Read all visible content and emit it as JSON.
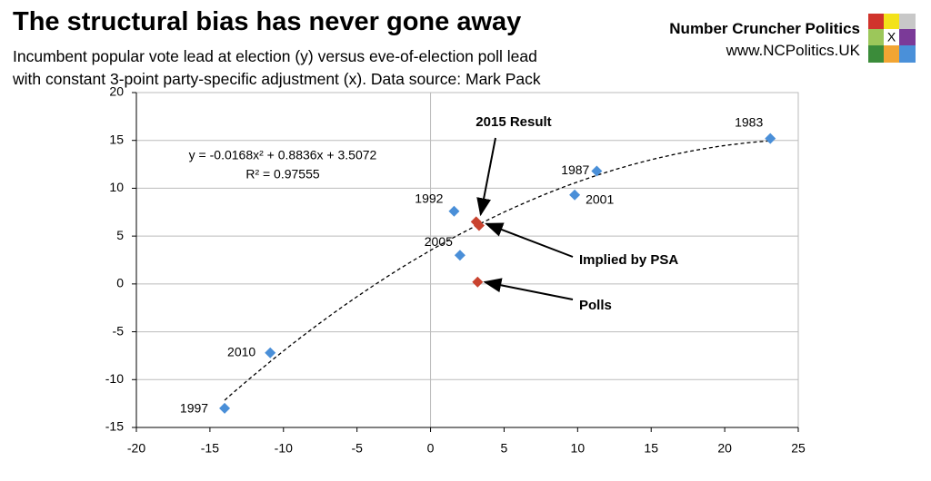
{
  "header": {
    "title": "The structural bias has never gone away",
    "subtitle": [
      "Incumbent popular vote lead at election (y) versus eve-of-election poll lead",
      "with constant 3-point party-specific adjustment (x). Data source: Mark Pack"
    ],
    "brand": "Number Cruncher Politics",
    "url": "www.NCPolitics.UK",
    "logo_mark": "X"
  },
  "chart_data": {
    "type": "scatter",
    "xlim": [
      -20,
      25
    ],
    "xticks": [
      -20,
      -15,
      -10,
      -5,
      0,
      5,
      10,
      15,
      20,
      25
    ],
    "ylim": [
      -15,
      20
    ],
    "yticks": [
      -15,
      -10,
      -5,
      0,
      5,
      10,
      15,
      20
    ],
    "grid": true,
    "series": [
      {
        "color": "#4a8fd8",
        "x": [
          23.1,
          11.3,
          9.8,
          1.6,
          2.0,
          -10.9,
          -14.0
        ],
        "values": [
          15.2,
          11.8,
          9.3,
          7.6,
          3.0,
          -7.2,
          -13.0
        ],
        "point_labels": [
          "1983",
          "1987",
          "2001",
          "1992",
          "2005",
          "2010",
          "1997"
        ]
      },
      {
        "color": "#c9432f",
        "x": [
          3.1,
          3.3,
          3.2
        ],
        "values": [
          6.5,
          6.1,
          0.2
        ]
      }
    ],
    "annotations": [
      "2015 Result",
      "Implied by PSA",
      "Polls"
    ],
    "trendline": {
      "equation": "y = -0.0168x² + 0.8836x + 3.5072",
      "r_squared": "R² = 0.97555"
    }
  }
}
